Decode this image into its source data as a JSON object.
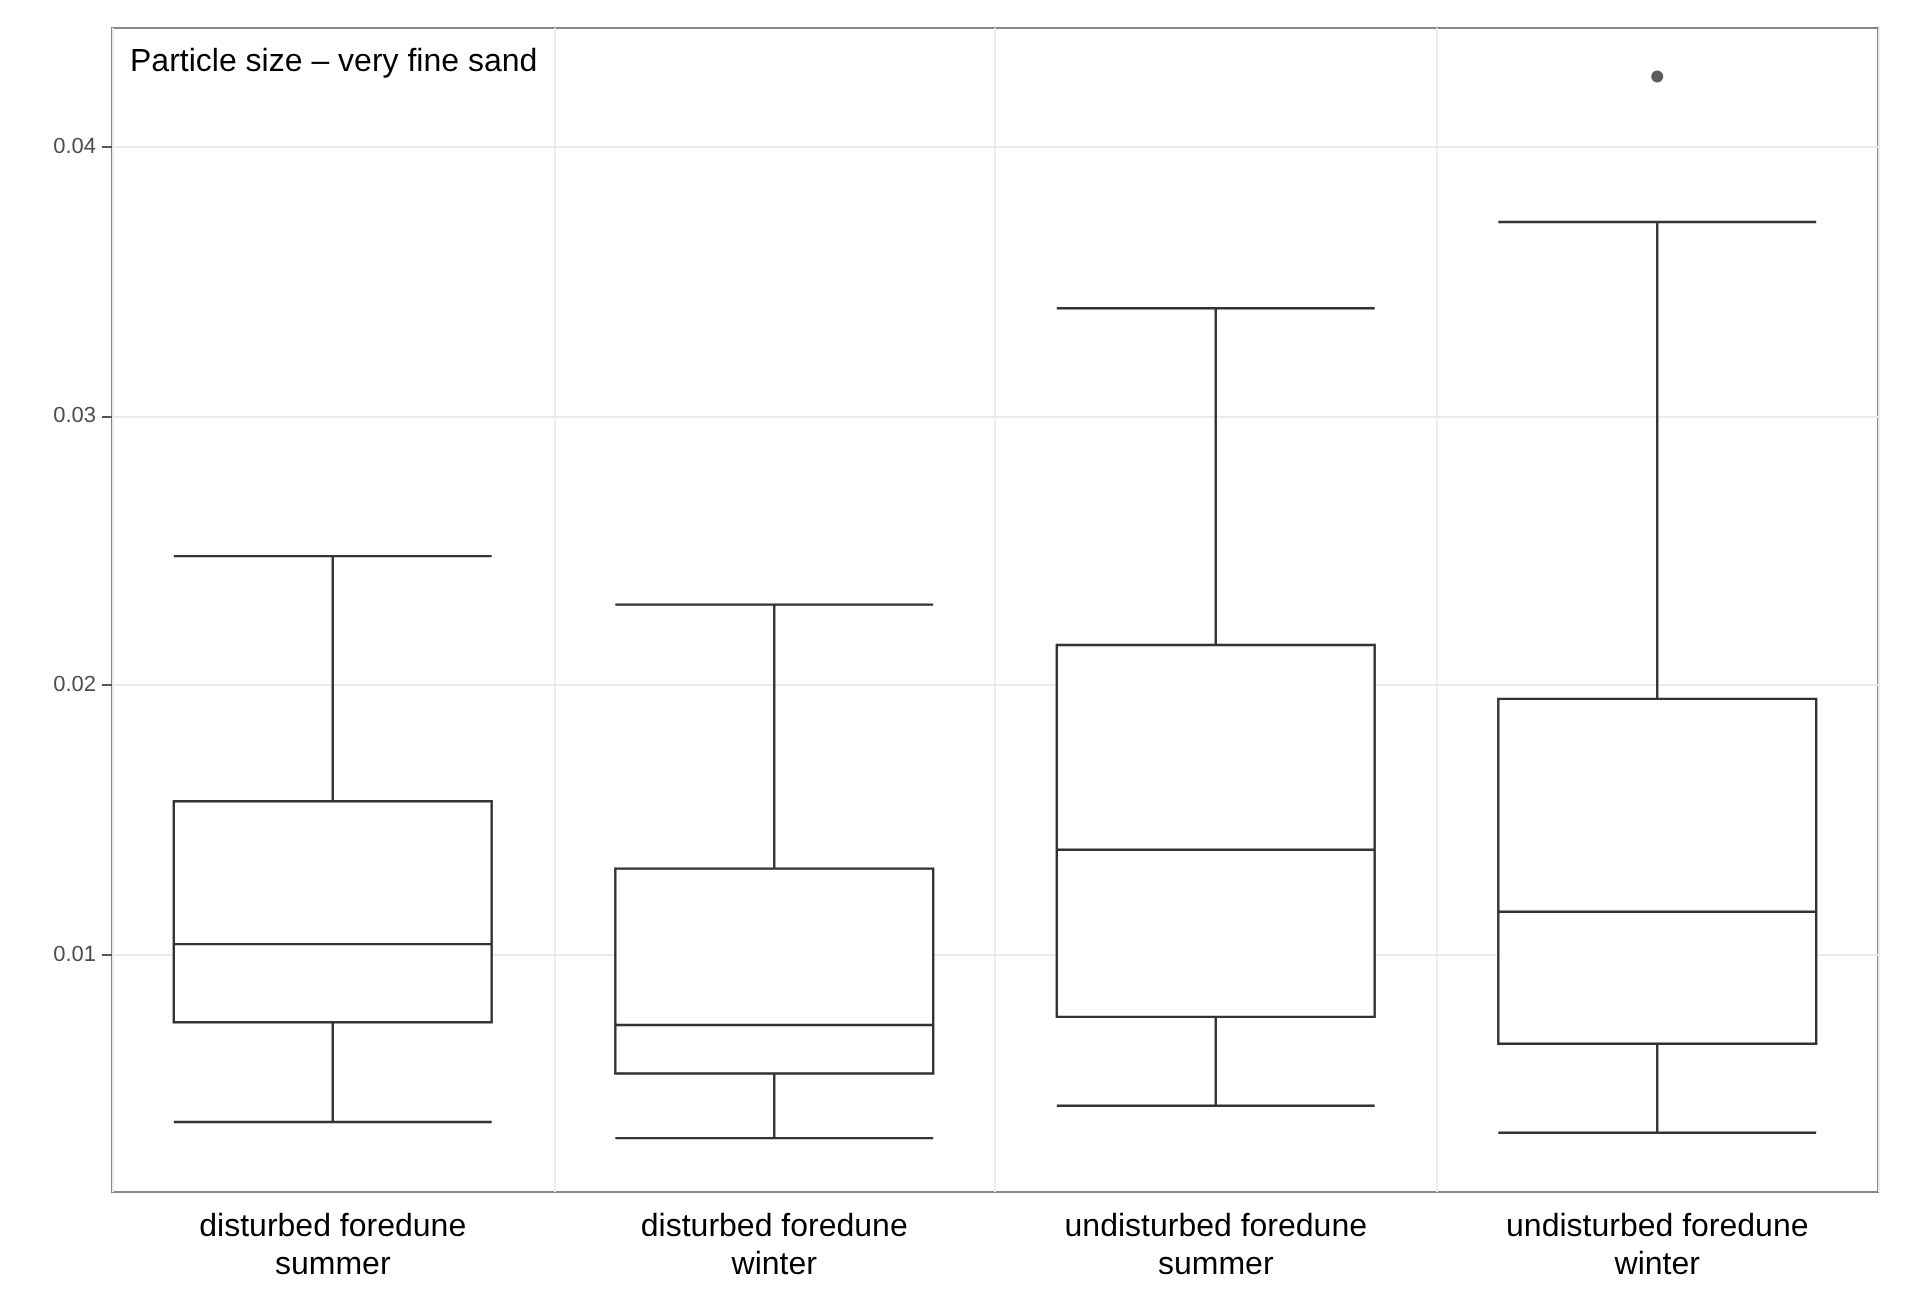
{
  "chart_data": {
    "type": "box",
    "title": "Particle size – very fine sand",
    "categories": [
      "disturbed foredune\nsummer",
      "disturbed foredune\nwinter",
      "undisturbed foredune\nsummer",
      "undisturbed foredune\nwinter"
    ],
    "boxes": [
      {
        "low": 0.0038,
        "q1": 0.0075,
        "median": 0.0104,
        "q3": 0.0157,
        "high": 0.0248
      },
      {
        "low": 0.0032,
        "q1": 0.0056,
        "median": 0.0074,
        "q3": 0.0132,
        "high": 0.023
      },
      {
        "low": 0.0044,
        "q1": 0.0077,
        "median": 0.0139,
        "q3": 0.0215,
        "high": 0.034
      },
      {
        "low": 0.0034,
        "q1": 0.0067,
        "median": 0.0116,
        "q3": 0.0195,
        "high": 0.0372,
        "outliers": [
          0.0426
        ]
      }
    ],
    "color": "#333333",
    "ylim": [
      0.0012,
      0.0444
    ],
    "yticks": [
      0.01,
      0.02,
      0.03,
      0.04
    ],
    "grid": true
  }
}
